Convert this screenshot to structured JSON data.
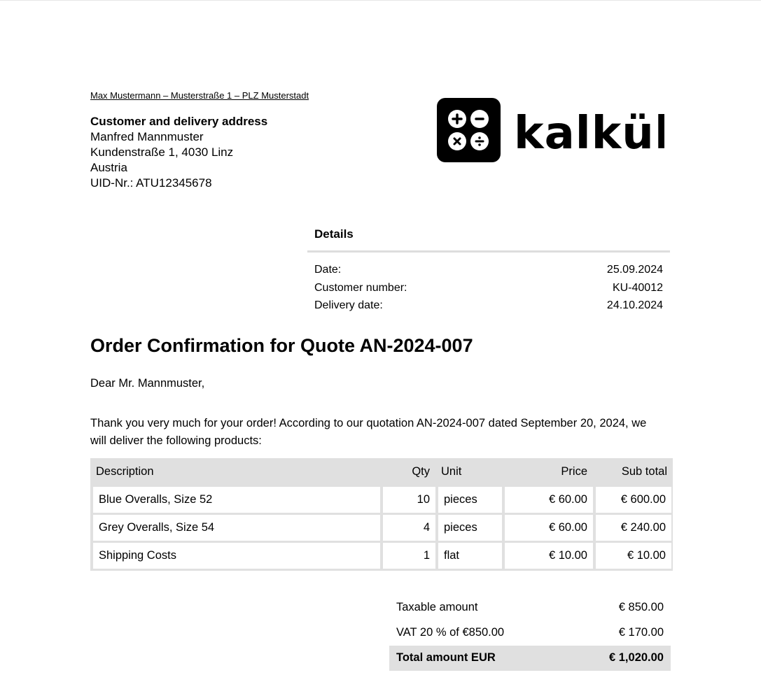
{
  "sender_line": "Max Mustermann – Musterstraße 1 – PLZ Musterstadt",
  "address": {
    "heading": "Customer and delivery address",
    "name": "Manfred Mannmuster",
    "street": "Kundenstraße 1, 4030 Linz",
    "country": "Austria",
    "vat_id": "UID-Nr.: ATU12345678"
  },
  "logo": {
    "text": "kalkül",
    "icon": "calculator-operators-icon"
  },
  "details": {
    "heading": "Details",
    "rows": [
      {
        "label": "Date:",
        "value": "25.09.2024"
      },
      {
        "label": "Customer number:",
        "value": "KU-40012"
      },
      {
        "label": "Delivery date:",
        "value": "24.10.2024"
      }
    ]
  },
  "title": "Order Confirmation for Quote AN-2024-007",
  "greeting": "Dear Mr. Mannmuster,",
  "intro": "Thank you very much for your order! According to our quotation AN-2024-007 dated September 20, 2024, we will deliver the following products:",
  "table": {
    "headers": [
      "Description",
      "Qty",
      "Unit",
      "Price",
      "Sub total"
    ],
    "rows": [
      [
        "Blue Overalls, Size 52",
        "10",
        "pieces",
        "€ 60.00",
        "€ 600.00"
      ],
      [
        "Grey Overalls, Size 54",
        "4",
        "pieces",
        "€ 60.00",
        "€ 240.00"
      ],
      [
        "Shipping Costs",
        "1",
        "flat",
        "€ 10.00",
        "€ 10.00"
      ]
    ]
  },
  "totals": [
    {
      "label": "Taxable amount",
      "value": "€ 850.00"
    },
    {
      "label": "VAT 20 % of €850.00",
      "value": "€ 170.00"
    },
    {
      "label": "Total amount EUR",
      "value": "€ 1,020.00"
    }
  ]
}
